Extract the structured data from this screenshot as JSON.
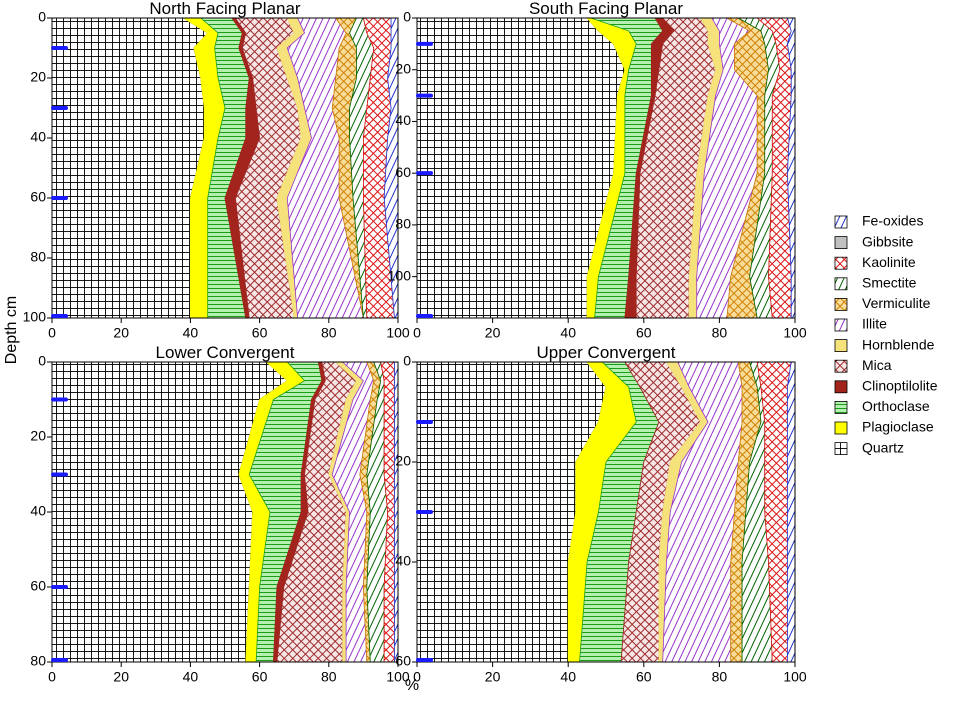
{
  "y_axis_label": "Depth cm",
  "x_axis_label": "%",
  "chart_data": [
    {
      "type": "area",
      "orientation": "horizontal",
      "title": "North Facing Planar",
      "y": [
        0,
        5,
        10,
        20,
        30,
        40,
        60,
        100
      ],
      "ylim": [
        0,
        100
      ],
      "yticks": [
        0,
        20,
        40,
        60,
        80,
        100
      ],
      "xlim": [
        0,
        100
      ],
      "xticks": [
        0,
        20,
        40,
        60,
        80,
        100
      ],
      "markers": [
        10,
        30,
        60,
        100
      ],
      "series": [
        {
          "name": "Quartz",
          "color": "#000000",
          "pattern": "grid",
          "values": [
            38,
            45,
            41,
            43,
            44,
            44,
            40,
            40
          ]
        },
        {
          "name": "Plagioclase",
          "color": "#ffff00",
          "pattern": "solid",
          "values": [
            5,
            3,
            6,
            5,
            6,
            4,
            5,
            5
          ]
        },
        {
          "name": "Orthoclase",
          "color": "#1a9e1a",
          "background": "#b6f0b0",
          "pattern": "horizontal",
          "values": [
            9,
            7,
            7,
            9,
            6,
            8,
            5,
            11
          ]
        },
        {
          "name": "Clinoptilolite",
          "color": "#a3241c",
          "pattern": "solid",
          "values": [
            1,
            1,
            1,
            1,
            3,
            4,
            3,
            1
          ]
        },
        {
          "name": "Mica",
          "color": "#9e2a2a",
          "background": "#f6e6e6",
          "pattern": "crosshatch",
          "values": [
            15,
            14,
            10,
            10,
            12,
            12,
            12,
            13
          ]
        },
        {
          "name": "Hornblende",
          "color": "#f5e27a",
          "pattern": "solid",
          "values": [
            3,
            3,
            3,
            3,
            2,
            3,
            3,
            1
          ]
        },
        {
          "name": "Illite",
          "color": "#9933cc",
          "pattern": "diagonal",
          "values": [
            11,
            12,
            15,
            11,
            8,
            8,
            15,
            19
          ]
        },
        {
          "name": "Vermiculite",
          "color": "#d08000",
          "background": "#f7dc9a",
          "pattern": "crosshatch",
          "values": [
            6,
            1,
            5,
            6,
            5,
            3,
            4,
            0
          ]
        },
        {
          "name": "Smectite",
          "color": "#006400",
          "pattern": "diagonal",
          "values": [
            2,
            5,
            5,
            4,
            5,
            4,
            3,
            1
          ]
        },
        {
          "name": "Kaolinite",
          "color": "#dd1111",
          "pattern": "crosshatch",
          "values": [
            8,
            7,
            5,
            5,
            7,
            7,
            6,
            8
          ]
        },
        {
          "name": "Gibbsite",
          "color": "#c0c0c0",
          "pattern": "solid",
          "values": [
            0,
            0,
            0,
            0,
            0,
            0,
            0,
            0
          ]
        },
        {
          "name": "Fe-oxides",
          "color": "#2233cc",
          "pattern": "diagonal",
          "values": [
            2,
            2,
            2,
            3,
            2,
            3,
            4,
            1
          ]
        }
      ]
    },
    {
      "type": "area",
      "orientation": "horizontal",
      "title": "South Facing Planar",
      "y": [
        0,
        5,
        10,
        20,
        30,
        60,
        100,
        116
      ],
      "ylim": [
        0,
        116
      ],
      "yticks": [
        0,
        20,
        40,
        60,
        80,
        100
      ],
      "xlim": [
        0,
        100
      ],
      "xticks": [
        0,
        20,
        40,
        60,
        80,
        100
      ],
      "markers": [
        10,
        30,
        60,
        116
      ],
      "series": [
        {
          "name": "Quartz",
          "color": "#000000",
          "pattern": "grid",
          "values": [
            45,
            48,
            52,
            55,
            53,
            52,
            45,
            45
          ]
        },
        {
          "name": "Plagioclase",
          "color": "#ffff00",
          "pattern": "solid",
          "values": [
            1,
            8,
            6,
            1,
            2,
            3,
            3,
            2
          ]
        },
        {
          "name": "Orthoclase",
          "color": "#1a9e1a",
          "background": "#b6f0b0",
          "pattern": "horizontal",
          "values": [
            17,
            9,
            4,
            6,
            7,
            3,
            8,
            8
          ]
        },
        {
          "name": "Clinoptilolite",
          "color": "#a3241c",
          "pattern": "solid",
          "values": [
            2,
            3,
            3,
            2,
            1,
            1,
            2,
            3
          ]
        },
        {
          "name": "Mica",
          "color": "#9e2a2a",
          "background": "#f6e6e6",
          "pattern": "crosshatch",
          "values": [
            10,
            9,
            12,
            15,
            14,
            15,
            14,
            14
          ]
        },
        {
          "name": "Hornblende",
          "color": "#f5e27a",
          "pattern": "solid",
          "values": [
            3,
            3,
            3,
            2,
            2,
            2,
            2,
            2
          ]
        },
        {
          "name": "Illite",
          "color": "#9933cc",
          "pattern": "diagonal",
          "values": [
            4,
            8,
            4,
            3,
            11,
            14,
            9,
            8
          ]
        },
        {
          "name": "Vermiculite",
          "color": "#d08000",
          "background": "#f7dc9a",
          "pattern": "crosshatch",
          "values": [
            3,
            3,
            8,
            9,
            2,
            2,
            5,
            8
          ]
        },
        {
          "name": "Smectite",
          "color": "#006400",
          "pattern": "diagonal",
          "values": [
            5,
            3,
            3,
            3,
            2,
            2,
            5,
            4
          ]
        },
        {
          "name": "Kaolinite",
          "color": "#dd1111",
          "pattern": "crosshatch",
          "values": [
            8,
            5,
            3,
            3,
            5,
            4,
            6,
            5
          ]
        },
        {
          "name": "Gibbsite",
          "color": "#c0c0c0",
          "pattern": "solid",
          "values": [
            0,
            0,
            0,
            0,
            0,
            0,
            0,
            0
          ]
        },
        {
          "name": "Fe-oxides",
          "color": "#2233cc",
          "pattern": "diagonal",
          "values": [
            2,
            1,
            2,
            1,
            1,
            2,
            1,
            1
          ]
        }
      ]
    },
    {
      "type": "area",
      "orientation": "horizontal",
      "title": "Lower Convergent",
      "y": [
        0,
        5,
        10,
        30,
        40,
        60,
        80
      ],
      "ylim": [
        0,
        80
      ],
      "yticks": [
        0,
        20,
        40,
        60,
        80
      ],
      "xlim": [
        0,
        100
      ],
      "xticks": [
        0,
        20,
        40,
        60,
        80,
        100
      ],
      "markers": [
        10,
        30,
        60,
        80
      ],
      "series": [
        {
          "name": "Quartz",
          "color": "#000000",
          "pattern": "grid",
          "values": [
            62,
            68,
            60,
            54,
            58,
            57,
            56
          ]
        },
        {
          "name": "Plagioclase",
          "color": "#ffff00",
          "pattern": "solid",
          "values": [
            6,
            5,
            4,
            3,
            5,
            3,
            3
          ]
        },
        {
          "name": "Orthoclase",
          "color": "#1a9e1a",
          "background": "#b6f0b0",
          "pattern": "horizontal",
          "values": [
            9,
            5,
            11,
            15,
            9,
            5,
            5
          ]
        },
        {
          "name": "Clinoptilolite",
          "color": "#a3241c",
          "pattern": "solid",
          "values": [
            1,
            1,
            1,
            1,
            2,
            2,
            1
          ]
        },
        {
          "name": "Mica",
          "color": "#9e2a2a",
          "background": "#f6e6e6",
          "pattern": "crosshatch",
          "values": [
            4,
            9,
            9,
            7,
            11,
            17,
            19
          ]
        },
        {
          "name": "Hornblende",
          "color": "#f5e27a",
          "pattern": "solid",
          "values": [
            2,
            2,
            2,
            1,
            1,
            1,
            1
          ]
        },
        {
          "name": "Illite",
          "color": "#9933cc",
          "pattern": "diagonal",
          "values": [
            7,
            3,
            5,
            8,
            5,
            5,
            6
          ]
        },
        {
          "name": "Vermiculite",
          "color": "#d08000",
          "background": "#f7dc9a",
          "pattern": "crosshatch",
          "values": [
            2,
            2,
            2,
            2,
            1,
            1,
            1
          ]
        },
        {
          "name": "Smectite",
          "color": "#006400",
          "pattern": "diagonal",
          "values": [
            2,
            1,
            2,
            5,
            5,
            5,
            4
          ]
        },
        {
          "name": "Kaolinite",
          "color": "#dd1111",
          "pattern": "crosshatch",
          "values": [
            4,
            3,
            3,
            3,
            2,
            3,
            3
          ]
        },
        {
          "name": "Gibbsite",
          "color": "#c0c0c0",
          "pattern": "solid",
          "values": [
            0,
            0,
            0,
            0,
            0,
            0,
            0
          ]
        },
        {
          "name": "Fe-oxides",
          "color": "#2233cc",
          "pattern": "diagonal",
          "values": [
            1,
            1,
            1,
            1,
            1,
            1,
            1
          ]
        }
      ]
    },
    {
      "type": "area",
      "orientation": "horizontal",
      "title": "Upper Convergent",
      "y": [
        0,
        5,
        12,
        20,
        30,
        40,
        60
      ],
      "ylim": [
        0,
        60
      ],
      "yticks": [
        0,
        20,
        40,
        60
      ],
      "xlim": [
        0,
        100
      ],
      "xticks": [
        0,
        20,
        40,
        60,
        80,
        100
      ],
      "markers": [
        12,
        30,
        60
      ],
      "series": [
        {
          "name": "Quartz",
          "color": "#000000",
          "pattern": "grid",
          "values": [
            45,
            50,
            48,
            42,
            42,
            40,
            40
          ]
        },
        {
          "name": "Plagioclase",
          "color": "#ffff00",
          "pattern": "solid",
          "values": [
            4,
            6,
            10,
            8,
            6,
            5,
            3
          ]
        },
        {
          "name": "Orthoclase",
          "color": "#1a9e1a",
          "background": "#b6f0b0",
          "pattern": "horizontal",
          "values": [
            6,
            3,
            6,
            10,
            10,
            11,
            11
          ]
        },
        {
          "name": "Clinoptilolite",
          "color": "#a3241c",
          "pattern": "solid",
          "values": [
            0,
            0,
            0,
            0,
            0,
            0,
            0
          ]
        },
        {
          "name": "Mica",
          "color": "#9e2a2a",
          "background": "#f6e6e6",
          "pattern": "crosshatch",
          "values": [
            11,
            11,
            11,
            7,
            7,
            8,
            10
          ]
        },
        {
          "name": "Hornblende",
          "color": "#f5e27a",
          "pattern": "solid",
          "values": [
            3,
            2,
            2,
            3,
            2,
            2,
            1
          ]
        },
        {
          "name": "Illite",
          "color": "#9933cc",
          "pattern": "diagonal",
          "values": [
            16,
            14,
            9,
            15,
            17,
            17,
            18
          ]
        },
        {
          "name": "Vermiculite",
          "color": "#d08000",
          "background": "#f7dc9a",
          "pattern": "crosshatch",
          "values": [
            3,
            4,
            5,
            3,
            3,
            3,
            3
          ]
        },
        {
          "name": "Smectite",
          "color": "#006400",
          "pattern": "diagonal",
          "values": [
            2,
            1,
            1,
            4,
            5,
            7,
            8
          ]
        },
        {
          "name": "Kaolinite",
          "color": "#dd1111",
          "pattern": "crosshatch",
          "values": [
            9,
            7,
            6,
            6,
            6,
            5,
            4
          ]
        },
        {
          "name": "Gibbsite",
          "color": "#c0c0c0",
          "pattern": "solid",
          "values": [
            0,
            0,
            0,
            0,
            0,
            0,
            0
          ]
        },
        {
          "name": "Fe-oxides",
          "color": "#2233cc",
          "pattern": "diagonal",
          "values": [
            1,
            2,
            2,
            2,
            2,
            2,
            2
          ]
        }
      ]
    }
  ]
}
